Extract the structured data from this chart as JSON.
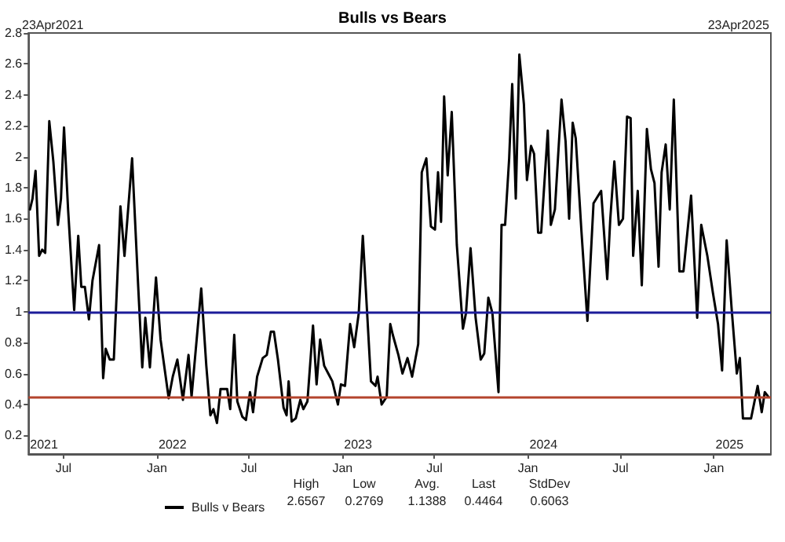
{
  "chart_data": {
    "type": "line",
    "title": "Bulls vs Bears",
    "xlim": [
      "2021-04-23",
      "2025-04-23"
    ],
    "xticks": [
      {
        "value": "2021-07-01",
        "label": "Jul"
      },
      {
        "value": "2022-01-01",
        "label": "Jan"
      },
      {
        "value": "2022-07-01",
        "label": "Jul"
      },
      {
        "value": "2023-01-01",
        "label": "Jan"
      },
      {
        "value": "2023-07-01",
        "label": "Jul"
      },
      {
        "value": "2024-01-01",
        "label": "Jan"
      },
      {
        "value": "2024-07-01",
        "label": "Jul"
      },
      {
        "value": "2025-01-01",
        "label": "Jan"
      }
    ],
    "ylim": [
      0.08,
      2.8
    ],
    "yticks": [
      0.2,
      0.4,
      0.6,
      0.8,
      1,
      1.2,
      1.4,
      1.6,
      1.8,
      2,
      2.2,
      2.4,
      2.6,
      2.8
    ],
    "grid": false,
    "legend": "bottom",
    "marker": "none",
    "line_style": "solid",
    "series": [
      {
        "name": "Bulls v Bears",
        "color": "#000000",
        "x": [
          "2021-04-26",
          "2021-05-01",
          "2021-05-07",
          "2021-05-14",
          "2021-05-20",
          "2021-05-26",
          "2021-06-03",
          "2021-06-11",
          "2021-06-20",
          "2021-06-26",
          "2021-07-02",
          "2021-07-10",
          "2021-07-22",
          "2021-07-30",
          "2021-08-05",
          "2021-08-12",
          "2021-08-20",
          "2021-08-27",
          "2021-09-09",
          "2021-09-17",
          "2021-09-22",
          "2021-09-30",
          "2021-10-08",
          "2021-10-21",
          "2021-10-29",
          "2021-11-13",
          "2021-11-25",
          "2021-12-03",
          "2021-12-09",
          "2021-12-18",
          "2021-12-30",
          "2022-01-08",
          "2022-01-24",
          "2022-02-01",
          "2022-02-10",
          "2022-02-21",
          "2022-03-04",
          "2022-03-10",
          "2022-03-29",
          "2022-04-08",
          "2022-04-16",
          "2022-04-22",
          "2022-04-29",
          "2022-05-06",
          "2022-05-19",
          "2022-05-25",
          "2022-06-02",
          "2022-06-08",
          "2022-06-18",
          "2022-06-25",
          "2022-07-03",
          "2022-07-09",
          "2022-07-17",
          "2022-07-28",
          "2022-08-05",
          "2022-08-13",
          "2022-08-19",
          "2022-08-27",
          "2022-09-07",
          "2022-09-13",
          "2022-09-17",
          "2022-09-23",
          "2022-10-01",
          "2022-10-10",
          "2022-10-16",
          "2022-10-24",
          "2022-11-04",
          "2022-11-11",
          "2022-11-18",
          "2022-11-26",
          "2022-12-04",
          "2022-12-12",
          "2022-12-23",
          "2022-12-29",
          "2023-01-06",
          "2023-01-16",
          "2023-01-24",
          "2023-02-02",
          "2023-02-10",
          "2023-02-18",
          "2023-02-26",
          "2023-03-07",
          "2023-03-11",
          "2023-03-19",
          "2023-03-29",
          "2023-04-05",
          "2023-04-10",
          "2023-04-21",
          "2023-04-29",
          "2023-05-09",
          "2023-05-18",
          "2023-05-30",
          "2023-06-06",
          "2023-06-15",
          "2023-06-24",
          "2023-07-02",
          "2023-07-08",
          "2023-07-14",
          "2023-07-20",
          "2023-07-27",
          "2023-08-04",
          "2023-08-14",
          "2023-08-26",
          "2023-09-01",
          "2023-09-10",
          "2023-09-20",
          "2023-09-30",
          "2023-10-07",
          "2023-10-15",
          "2023-10-23",
          "2023-11-04",
          "2023-11-10",
          "2023-11-17",
          "2023-11-25",
          "2023-12-01",
          "2023-12-08",
          "2023-12-15",
          "2023-12-24",
          "2023-12-30",
          "2024-01-07",
          "2024-01-13",
          "2024-01-21",
          "2024-01-27",
          "2024-02-09",
          "2024-02-15",
          "2024-02-23",
          "2024-03-07",
          "2024-03-15",
          "2024-03-22",
          "2024-03-29",
          "2024-04-04",
          "2024-04-15",
          "2024-04-27",
          "2024-05-09",
          "2024-05-24",
          "2024-06-05",
          "2024-06-11",
          "2024-06-19",
          "2024-06-28",
          "2024-07-06",
          "2024-07-14",
          "2024-07-21",
          "2024-07-26",
          "2024-08-04",
          "2024-08-12",
          "2024-08-22",
          "2024-08-30",
          "2024-09-06",
          "2024-09-14",
          "2024-09-20",
          "2024-09-28",
          "2024-10-06",
          "2024-10-14",
          "2024-10-25",
          "2024-11-02",
          "2024-11-17",
          "2024-11-29",
          "2024-12-07",
          "2024-12-19",
          "2024-12-30",
          "2025-01-09",
          "2025-01-17",
          "2025-01-26",
          "2025-02-05",
          "2025-02-15",
          "2025-02-21",
          "2025-02-27",
          "2025-03-15",
          "2025-03-28",
          "2025-04-05",
          "2025-04-11",
          "2025-04-18"
        ],
        "values": [
          1.66,
          1.73,
          1.91,
          1.36,
          1.4,
          1.38,
          2.23,
          1.97,
          1.56,
          1.73,
          2.19,
          1.66,
          1.01,
          1.49,
          1.16,
          1.16,
          0.95,
          1.2,
          1.43,
          0.57,
          0.76,
          0.69,
          0.69,
          1.68,
          1.36,
          1.99,
          1.16,
          0.64,
          0.96,
          0.64,
          1.22,
          0.82,
          0.44,
          0.58,
          0.69,
          0.43,
          0.72,
          0.45,
          1.15,
          0.65,
          0.33,
          0.37,
          0.28,
          0.5,
          0.5,
          0.37,
          0.85,
          0.42,
          0.32,
          0.3,
          0.48,
          0.35,
          0.58,
          0.7,
          0.72,
          0.87,
          0.87,
          0.69,
          0.38,
          0.33,
          0.55,
          0.29,
          0.31,
          0.43,
          0.37,
          0.42,
          0.91,
          0.53,
          0.82,
          0.65,
          0.6,
          0.55,
          0.4,
          0.53,
          0.52,
          0.92,
          0.77,
          0.99,
          1.49,
          1.02,
          0.55,
          0.52,
          0.58,
          0.4,
          0.45,
          0.92,
          0.85,
          0.72,
          0.6,
          0.7,
          0.58,
          0.79,
          1.9,
          1.99,
          1.55,
          1.53,
          1.9,
          1.58,
          2.39,
          1.88,
          2.29,
          1.43,
          0.89,
          0.99,
          1.41,
          0.96,
          0.69,
          0.73,
          1.09,
          0.99,
          0.48,
          1.56,
          1.56,
          1.99,
          2.47,
          1.73,
          2.66,
          2.34,
          1.85,
          2.07,
          2.02,
          1.51,
          1.51,
          2.17,
          1.56,
          1.66,
          2.37,
          2.1,
          1.6,
          2.22,
          2.12,
          1.53,
          0.94,
          1.7,
          1.78,
          1.21,
          1.6,
          1.97,
          1.56,
          1.6,
          2.26,
          2.25,
          1.36,
          1.78,
          1.17,
          2.18,
          1.92,
          1.83,
          1.29,
          1.9,
          2.08,
          1.66,
          2.37,
          1.26,
          1.26,
          1.75,
          0.96,
          1.56,
          1.36,
          1.12,
          0.92,
          0.62,
          1.46,
          1.01,
          0.6,
          0.7,
          0.31,
          0.31,
          0.52,
          0.35,
          0.48,
          0.45
        ]
      }
    ],
    "ref_lines": [
      {
        "axis": "y",
        "value": 1,
        "color": "#1c1c9a"
      },
      {
        "axis": "y",
        "value": 0.4464,
        "color": "#b4442c"
      }
    ],
    "annotations": [
      "23Apr2021",
      "23Apr2025",
      "2021",
      "2022",
      "2023",
      "2024",
      "2025",
      "High",
      "2.6567",
      "Low",
      "0.2769",
      "Avg.",
      "1.1388",
      "Last",
      "0.4464",
      "StdDev",
      "0.6063"
    ]
  }
}
